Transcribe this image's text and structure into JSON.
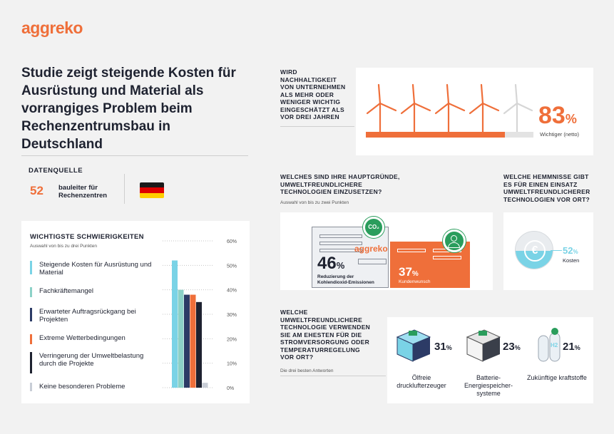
{
  "brand": {
    "logo_text": "aggreko",
    "accent": "#ef6f3a",
    "dark": "#1e2230"
  },
  "title": "Studie zeigt steigende Kosten für Ausrüstung und Material als vorrangiges Problem beim Rechenzentrumsbau in Deutschland",
  "datasource": {
    "label": "DATENQUELLE",
    "count": "52",
    "description": "bauleiter für Rechenzentren",
    "flag": "germany-flag"
  },
  "challenges": {
    "title": "WICHTIGSTE SCHWIERIGKEITEN",
    "subtitle": "Auswahl von bis zu drei Punkten",
    "ticks": [
      "60%",
      "50%",
      "40%",
      "30%",
      "20%",
      "10%",
      "0%"
    ],
    "items": [
      {
        "label": "Steigende Kosten für Ausrüstung und Material",
        "color": "#7ad3e6"
      },
      {
        "label": "Fachkräftemangel",
        "color": "#8cd1c7"
      },
      {
        "label": "Erwarteter Auftragsrückgang bei Projekten",
        "color": "#2c3b66"
      },
      {
        "label": "Extreme Wetterbedingungen",
        "color": "#ef6f3a"
      },
      {
        "label": "Verringerung der Umweltbelastung durch die Projekte",
        "color": "#1e2230"
      },
      {
        "label": "Keine besonderen Probleme",
        "color": "#c8cdd6"
      }
    ]
  },
  "chart_data": {
    "type": "bar",
    "categories": [
      "Steigende Kosten für Ausrüstung und Material",
      "Fachkräftemangel",
      "Erwarteter Auftragsrückgang bei Projekten",
      "Extreme Wetterbedingungen",
      "Verringerung der Umweltbelastung durch die Projekte",
      "Keine besonderen Probleme"
    ],
    "values": [
      52,
      40,
      38,
      38,
      35,
      2
    ],
    "colors": [
      "#7ad3e6",
      "#8cd1c7",
      "#2c3b66",
      "#ef6f3a",
      "#1e2230",
      "#c8cdd6"
    ],
    "ylim": [
      0,
      60
    ],
    "grid": true
  },
  "sustainability": {
    "question": "WIRD NACHHALTIGKEIT VON UNTERNEHMEN ALS MEHR ODER WENIGER WICHTIG EINGESCHÄTZT ALS VOR DREI JAHREN",
    "value": "83",
    "unit": "%",
    "caption": "Wichtiger (netto)",
    "fraction": 0.83
  },
  "reasons": {
    "question": "WELCHES SIND IHRE HAUPTGRÜNDE, UMWELTFREUNDLICHERE TECHNOLOGIEN EINZUSETZEN?",
    "subtitle": "Auswahl von bis zu zwei Punkten",
    "item1": {
      "value": "46",
      "unit": "%",
      "label": "Reduzierung der Kohlendioxid-Emissionen",
      "icon": "co2-cloud-icon"
    },
    "item2": {
      "value": "37",
      "unit": "%",
      "label": "Kundenwunsch",
      "icon": "customer-chat-icon"
    },
    "doc_logo": "aggreko"
  },
  "barriers": {
    "question": "WELCHE HEMMNISSE GIBT ES FÜR EINEN EINSATZ UMWELTFREUNDLICHERER TECHNOLOGIEN VOR ORT?",
    "value": "52",
    "unit": "%",
    "label": "Kosten",
    "icon": "euro-coin-icon"
  },
  "technology": {
    "question": "WELCHE UMWELTFREUNDLICHERE TECHNOLOGIE VERWENDEN SIE AM EHESTEN FÜR DIE STROMVERSORGUNG ODER TEMPERATURREGELUNG VOR ORT?",
    "subtitle": "Die drei besten Antworten",
    "items": [
      {
        "value": "31",
        "unit": "%",
        "label": "Ölfreie drucklufterzeuger",
        "icon": "compressor-icon"
      },
      {
        "value": "23",
        "unit": "%",
        "label": "Batterie-Energiespeicher-systeme",
        "icon": "battery-storage-icon"
      },
      {
        "value": "21",
        "unit": "%",
        "label": "Zukünftige kraftstoffe",
        "icon": "hydrogen-tanks-icon",
        "tank_label": "H2"
      }
    ]
  }
}
